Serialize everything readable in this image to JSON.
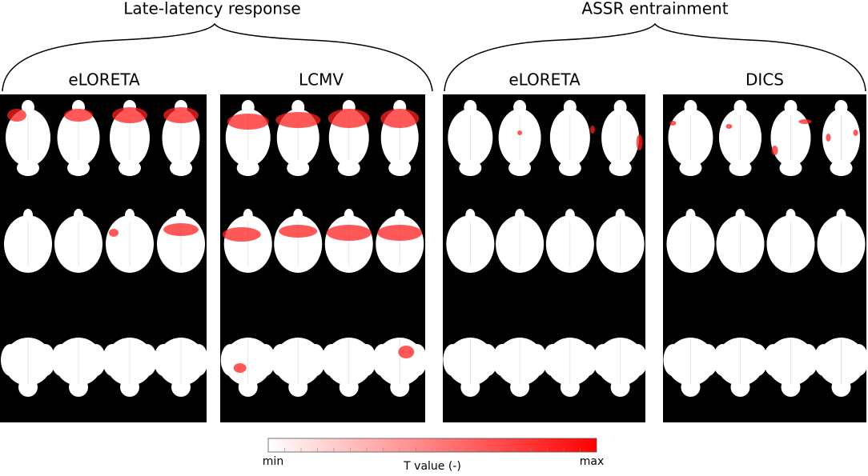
{
  "groups": [
    {
      "title": "Late-latency response",
      "panels": [
        {
          "title": "eLORETA"
        },
        {
          "title": "LCMV"
        }
      ]
    },
    {
      "title": "ASSR entrainment",
      "panels": [
        {
          "title": "eLORETA"
        },
        {
          "title": "DICS"
        }
      ]
    }
  ],
  "colorbar": {
    "min_label": "min",
    "max_label": "max",
    "title": "T value (-)"
  }
}
